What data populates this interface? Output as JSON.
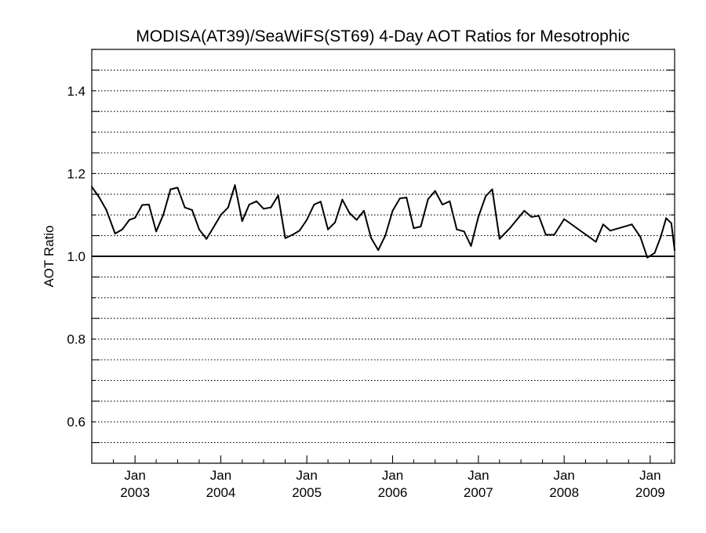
{
  "chart_data": {
    "type": "line",
    "title": "MODISA(AT39)/SeaWiFS(ST69) 4-Day AOT Ratios for Mesotrophic",
    "xlabel": "",
    "ylabel": "AOT Ratio",
    "xlim": [
      "2002-07-01",
      "2009-04-15"
    ],
    "ylim": [
      0.5,
      1.5
    ],
    "reference_line": 1.0,
    "grid": "horizontal dotted lines every 0.05",
    "x_ticks": [
      {
        "date": "2003-01-01",
        "month": "Jan",
        "year": "2003"
      },
      {
        "date": "2004-01-01",
        "month": "Jan",
        "year": "2004"
      },
      {
        "date": "2005-01-01",
        "month": "Jan",
        "year": "2005"
      },
      {
        "date": "2006-01-01",
        "month": "Jan",
        "year": "2006"
      },
      {
        "date": "2007-01-01",
        "month": "Jan",
        "year": "2007"
      },
      {
        "date": "2008-01-01",
        "month": "Jan",
        "year": "2008"
      },
      {
        "date": "2009-01-01",
        "month": "Jan",
        "year": "2009"
      }
    ],
    "y_ticks": [
      "0.6",
      "0.8",
      "1.0",
      "1.2",
      "1.4"
    ],
    "series": [
      {
        "color": "#000000",
        "points": [
          [
            "2002-07-01",
            1.168
          ],
          [
            "2002-08-01",
            1.143
          ],
          [
            "2002-09-01",
            1.112
          ],
          [
            "2002-10-08",
            1.055
          ],
          [
            "2002-11-08",
            1.065
          ],
          [
            "2002-12-08",
            1.088
          ],
          [
            "2003-01-01",
            1.093
          ],
          [
            "2003-02-01",
            1.124
          ],
          [
            "2003-03-01",
            1.125
          ],
          [
            "2003-04-01",
            1.06
          ],
          [
            "2003-05-01",
            1.1
          ],
          [
            "2003-06-01",
            1.162
          ],
          [
            "2003-07-01",
            1.166
          ],
          [
            "2003-08-01",
            1.118
          ],
          [
            "2003-09-01",
            1.112
          ],
          [
            "2003-10-01",
            1.065
          ],
          [
            "2003-11-01",
            1.042
          ],
          [
            "2003-12-01",
            1.07
          ],
          [
            "2004-01-01",
            1.1
          ],
          [
            "2004-02-01",
            1.118
          ],
          [
            "2004-03-01",
            1.172
          ],
          [
            "2004-04-01",
            1.085
          ],
          [
            "2004-05-01",
            1.125
          ],
          [
            "2004-06-01",
            1.133
          ],
          [
            "2004-07-01",
            1.115
          ],
          [
            "2004-08-01",
            1.118
          ],
          [
            "2004-09-01",
            1.147
          ],
          [
            "2004-10-01",
            1.044
          ],
          [
            "2004-11-01",
            1.052
          ],
          [
            "2004-12-01",
            1.062
          ],
          [
            "2005-01-01",
            1.088
          ],
          [
            "2005-02-01",
            1.125
          ],
          [
            "2005-03-01",
            1.132
          ],
          [
            "2005-04-01",
            1.065
          ],
          [
            "2005-05-01",
            1.082
          ],
          [
            "2005-06-01",
            1.137
          ],
          [
            "2005-07-01",
            1.105
          ],
          [
            "2005-08-01",
            1.088
          ],
          [
            "2005-09-01",
            1.11
          ],
          [
            "2005-10-01",
            1.045
          ],
          [
            "2005-11-01",
            1.015
          ],
          [
            "2005-12-01",
            1.05
          ],
          [
            "2006-01-01",
            1.11
          ],
          [
            "2006-02-01",
            1.14
          ],
          [
            "2006-03-01",
            1.142
          ],
          [
            "2006-04-01",
            1.068
          ],
          [
            "2006-05-01",
            1.072
          ],
          [
            "2006-06-01",
            1.138
          ],
          [
            "2006-07-01",
            1.158
          ],
          [
            "2006-08-01",
            1.125
          ],
          [
            "2006-09-01",
            1.133
          ],
          [
            "2006-10-01",
            1.065
          ],
          [
            "2006-11-01",
            1.06
          ],
          [
            "2006-12-01",
            1.025
          ],
          [
            "2007-01-01",
            1.095
          ],
          [
            "2007-02-01",
            1.145
          ],
          [
            "2007-03-01",
            1.162
          ],
          [
            "2007-04-01",
            1.042
          ],
          [
            "2007-05-15",
            1.068
          ],
          [
            "2007-07-15",
            1.11
          ],
          [
            "2007-08-15",
            1.095
          ],
          [
            "2007-09-15",
            1.098
          ],
          [
            "2007-10-15",
            1.052
          ],
          [
            "2007-11-20",
            1.052
          ],
          [
            "2008-01-01",
            1.09
          ],
          [
            "2008-05-15",
            1.035
          ],
          [
            "2008-06-15",
            1.077
          ],
          [
            "2008-07-15",
            1.062
          ],
          [
            "2008-10-15",
            1.077
          ],
          [
            "2008-11-20",
            1.047
          ],
          [
            "2008-12-20",
            0.997
          ],
          [
            "2009-01-20",
            1.008
          ],
          [
            "2009-02-15",
            1.047
          ],
          [
            "2009-03-10",
            1.092
          ],
          [
            "2009-04-01",
            1.08
          ],
          [
            "2009-04-15",
            1.015
          ]
        ]
      }
    ]
  }
}
